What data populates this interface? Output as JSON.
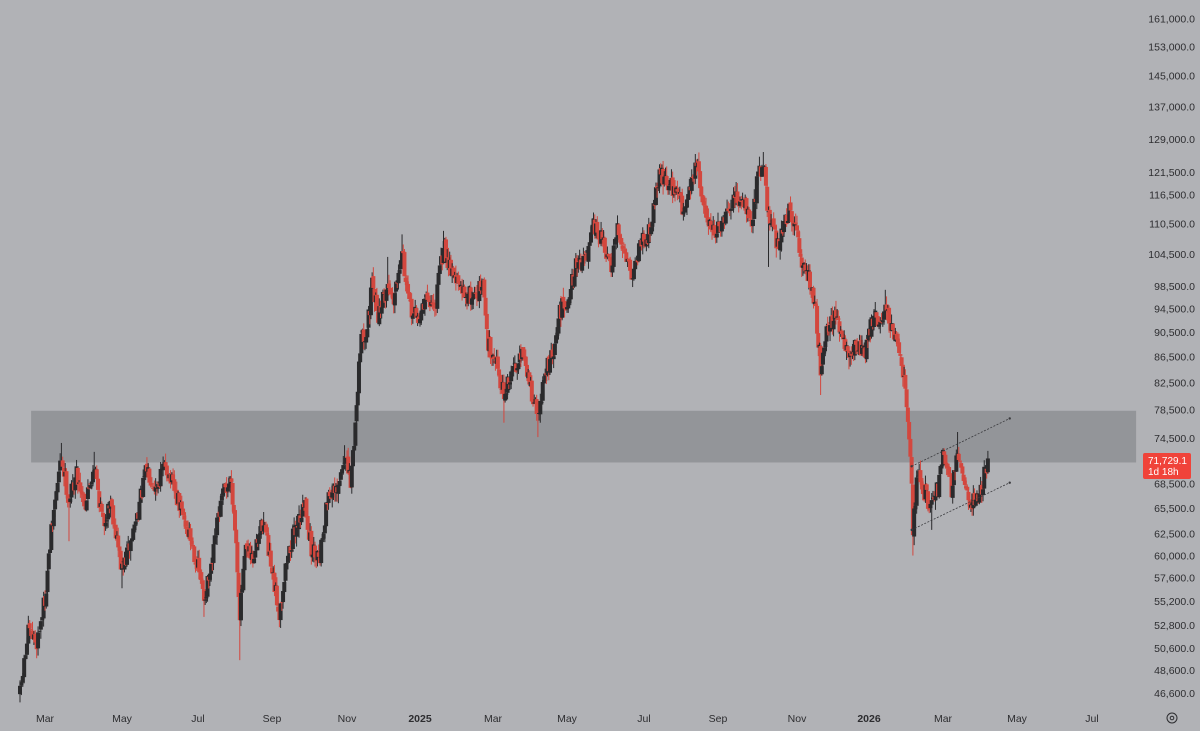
{
  "chart_data": {
    "type": "candlestick",
    "title": "",
    "xlabel": "",
    "ylabel": "",
    "scale": "log",
    "ylim": [
      45500,
      163000
    ],
    "colors": {
      "background": "#b1b2b6",
      "up": "#2a2a2c",
      "down": "#d3473e",
      "zone": "#8e8f94",
      "current_price_badge": "#f0433a",
      "axis_text": "#2d2d30"
    },
    "y_ticks": [
      {
        "label": "161,000.0",
        "value": 161000
      },
      {
        "label": "153,000.0",
        "value": 153000
      },
      {
        "label": "145,000.0",
        "value": 145000
      },
      {
        "label": "137,000.0",
        "value": 137000
      },
      {
        "label": "129,000.0",
        "value": 129000
      },
      {
        "label": "121,500.0",
        "value": 121500
      },
      {
        "label": "116,500.0",
        "value": 116500
      },
      {
        "label": "110,500.0",
        "value": 110500
      },
      {
        "label": "104,500.0",
        "value": 104500
      },
      {
        "label": "98,500.0",
        "value": 98500
      },
      {
        "label": "94,500.0",
        "value": 94500
      },
      {
        "label": "90,500.0",
        "value": 90500
      },
      {
        "label": "86,500.0",
        "value": 86500
      },
      {
        "label": "82,500.0",
        "value": 82500
      },
      {
        "label": "78,500.0",
        "value": 78500
      },
      {
        "label": "74,500.0",
        "value": 74500
      },
      {
        "label": "68,500.0",
        "value": 68500
      },
      {
        "label": "65,500.0",
        "value": 65500
      },
      {
        "label": "62,500.0",
        "value": 62500
      },
      {
        "label": "60,000.0",
        "value": 60000
      },
      {
        "label": "57,600.0",
        "value": 57600
      },
      {
        "label": "55,200.0",
        "value": 55200
      },
      {
        "label": "52,800.0",
        "value": 52800
      },
      {
        "label": "50,600.0",
        "value": 50600
      },
      {
        "label": "48,600.0",
        "value": 48600
      },
      {
        "label": "46,600.0",
        "value": 46600
      }
    ],
    "x_ticks": [
      {
        "label": "Mar",
        "date": "2024-03-01",
        "bold": false
      },
      {
        "label": "May",
        "date": "2024-05-01",
        "bold": false
      },
      {
        "label": "Jul",
        "date": "2024-07-01",
        "bold": false
      },
      {
        "label": "Sep",
        "date": "2024-09-01",
        "bold": false
      },
      {
        "label": "Nov",
        "date": "2024-11-01",
        "bold": false
      },
      {
        "label": "2025",
        "date": "2025-01-01",
        "bold": true
      },
      {
        "label": "Mar",
        "date": "2025-03-01",
        "bold": false
      },
      {
        "label": "May",
        "date": "2025-05-01",
        "bold": false
      },
      {
        "label": "Jul",
        "date": "2025-07-01",
        "bold": false
      },
      {
        "label": "Sep",
        "date": "2025-09-01",
        "bold": false
      },
      {
        "label": "Nov",
        "date": "2025-11-01",
        "bold": false
      },
      {
        "label": "2026",
        "date": "2026-01-01",
        "bold": true
      },
      {
        "label": "Mar",
        "date": "2026-03-01",
        "bold": false
      },
      {
        "label": "May",
        "date": "2026-05-01",
        "bold": false
      },
      {
        "label": "Jul",
        "date": "2026-07-01",
        "bold": false
      }
    ],
    "resistance_zone": {
      "low": 71200,
      "high": 78300,
      "start_date": "2024-02-20",
      "end_date": "2026-08-15"
    },
    "channel": {
      "upper": [
        {
          "date": "2026-02-04",
          "price": 70700
        },
        {
          "date": "2026-04-25",
          "price": 77200
        }
      ],
      "lower": [
        {
          "date": "2026-02-04",
          "price": 62900
        },
        {
          "date": "2026-04-25",
          "price": 68600
        }
      ]
    },
    "current_price": {
      "label": "71,729.1",
      "countdown": "1d 18h",
      "value": 71729.1
    },
    "price_path": [
      {
        "date": "2024-02-12",
        "price": 46500,
        "high": 47500,
        "low": 45800
      },
      {
        "date": "2024-02-18",
        "price": 52000
      },
      {
        "date": "2024-02-24",
        "price": 51200
      },
      {
        "date": "2024-03-01",
        "price": 55500
      },
      {
        "date": "2024-03-06",
        "price": 62500
      },
      {
        "date": "2024-03-10",
        "price": 67500
      },
      {
        "date": "2024-03-14",
        "price": 71800,
        "high": 73800
      },
      {
        "date": "2024-03-20",
        "price": 66500,
        "low": 61600
      },
      {
        "date": "2024-03-26",
        "price": 69800
      },
      {
        "date": "2024-04-02",
        "price": 66000
      },
      {
        "date": "2024-04-09",
        "price": 71000,
        "high": 72600
      },
      {
        "date": "2024-04-16",
        "price": 63500
      },
      {
        "date": "2024-04-22",
        "price": 66500
      },
      {
        "date": "2024-05-01",
        "price": 58300,
        "low": 56500
      },
      {
        "date": "2024-05-08",
        "price": 61500
      },
      {
        "date": "2024-05-15",
        "price": 66000
      },
      {
        "date": "2024-05-21",
        "price": 70500,
        "high": 71900
      },
      {
        "date": "2024-05-28",
        "price": 68000
      },
      {
        "date": "2024-06-05",
        "price": 71000,
        "high": 72000
      },
      {
        "date": "2024-06-12",
        "price": 67500
      },
      {
        "date": "2024-06-19",
        "price": 64500
      },
      {
        "date": "2024-06-26",
        "price": 61500
      },
      {
        "date": "2024-07-03",
        "price": 57500
      },
      {
        "date": "2024-07-06",
        "price": 55500,
        "low": 53600
      },
      {
        "date": "2024-07-12",
        "price": 58200
      },
      {
        "date": "2024-07-18",
        "price": 64500
      },
      {
        "date": "2024-07-23",
        "price": 67500
      },
      {
        "date": "2024-07-29",
        "price": 69000,
        "high": 70200
      },
      {
        "date": "2024-08-02",
        "price": 61500
      },
      {
        "date": "2024-08-05",
        "price": 54000,
        "low": 49500
      },
      {
        "date": "2024-08-10",
        "price": 60500
      },
      {
        "date": "2024-08-16",
        "price": 59500
      },
      {
        "date": "2024-08-25",
        "price": 64200,
        "high": 65000
      },
      {
        "date": "2024-08-31",
        "price": 58500
      },
      {
        "date": "2024-09-07",
        "price": 54000,
        "low": 52600
      },
      {
        "date": "2024-09-13",
        "price": 59500
      },
      {
        "date": "2024-09-21",
        "price": 63500
      },
      {
        "date": "2024-09-28",
        "price": 66000,
        "high": 66500
      },
      {
        "date": "2024-10-03",
        "price": 60500
      },
      {
        "date": "2024-10-10",
        "price": 60200,
        "low": 58900
      },
      {
        "date": "2024-10-17",
        "price": 67500
      },
      {
        "date": "2024-10-24",
        "price": 67000
      },
      {
        "date": "2024-10-30",
        "price": 72200,
        "high": 73500
      },
      {
        "date": "2024-11-04",
        "price": 68500
      },
      {
        "date": "2024-11-08",
        "price": 76500
      },
      {
        "date": "2024-11-12",
        "price": 88500
      },
      {
        "date": "2024-11-18",
        "price": 91500
      },
      {
        "date": "2024-11-22",
        "price": 98300,
        "high": 99600
      },
      {
        "date": "2024-11-27",
        "price": 93500
      },
      {
        "date": "2024-12-05",
        "price": 98500,
        "high": 103900
      },
      {
        "date": "2024-12-10",
        "price": 96500
      },
      {
        "date": "2024-12-17",
        "price": 106000,
        "high": 108300
      },
      {
        "date": "2024-12-22",
        "price": 95500
      },
      {
        "date": "2024-12-30",
        "price": 92500,
        "low": 91500
      },
      {
        "date": "2025-01-07",
        "price": 96500
      },
      {
        "date": "2025-01-13",
        "price": 94500
      },
      {
        "date": "2025-01-20",
        "price": 106000,
        "high": 109000
      },
      {
        "date": "2025-01-27",
        "price": 101500
      },
      {
        "date": "2025-02-03",
        "price": 97500
      },
      {
        "date": "2025-02-12",
        "price": 96500
      },
      {
        "date": "2025-02-21",
        "price": 98500
      },
      {
        "date": "2025-02-25",
        "price": 88500
      },
      {
        "date": "2025-03-03",
        "price": 86500
      },
      {
        "date": "2025-03-10",
        "price": 80500,
        "low": 76600
      },
      {
        "date": "2025-03-17",
        "price": 84000
      },
      {
        "date": "2025-03-24",
        "price": 87500,
        "high": 88500
      },
      {
        "date": "2025-03-31",
        "price": 82500
      },
      {
        "date": "2025-04-07",
        "price": 77500,
        "low": 74600
      },
      {
        "date": "2025-04-14",
        "price": 84500
      },
      {
        "date": "2025-04-21",
        "price": 87500
      },
      {
        "date": "2025-04-25",
        "price": 94000
      },
      {
        "date": "2025-05-02",
        "price": 96500
      },
      {
        "date": "2025-05-09",
        "price": 103000
      },
      {
        "date": "2025-05-17",
        "price": 103500
      },
      {
        "date": "2025-05-22",
        "price": 109500,
        "high": 111800
      },
      {
        "date": "2025-05-28",
        "price": 107500
      },
      {
        "date": "2025-06-05",
        "price": 101500
      },
      {
        "date": "2025-06-10",
        "price": 108800
      },
      {
        "date": "2025-06-17",
        "price": 104500
      },
      {
        "date": "2025-06-22",
        "price": 100500,
        "low": 98300
      },
      {
        "date": "2025-06-29",
        "price": 107500
      },
      {
        "date": "2025-07-05",
        "price": 108500
      },
      {
        "date": "2025-07-10",
        "price": 115500
      },
      {
        "date": "2025-07-14",
        "price": 121500,
        "high": 123200
      },
      {
        "date": "2025-07-22",
        "price": 118500
      },
      {
        "date": "2025-07-30",
        "price": 117500
      },
      {
        "date": "2025-08-02",
        "price": 113000
      },
      {
        "date": "2025-08-09",
        "price": 118500
      },
      {
        "date": "2025-08-14",
        "price": 123500,
        "high": 124300
      },
      {
        "date": "2025-08-20",
        "price": 113500
      },
      {
        "date": "2025-08-30",
        "price": 108500
      },
      {
        "date": "2025-09-06",
        "price": 110500
      },
      {
        "date": "2025-09-13",
        "price": 115500
      },
      {
        "date": "2025-09-21",
        "price": 115500
      },
      {
        "date": "2025-09-26",
        "price": 109500
      },
      {
        "date": "2025-10-02",
        "price": 120500
      },
      {
        "date": "2025-10-06",
        "price": 124500,
        "high": 126000
      },
      {
        "date": "2025-10-10",
        "price": 112000,
        "low": 102000
      },
      {
        "date": "2025-10-17",
        "price": 106500
      },
      {
        "date": "2025-10-27",
        "price": 114000
      },
      {
        "date": "2025-11-04",
        "price": 103500
      },
      {
        "date": "2025-11-13",
        "price": 99000
      },
      {
        "date": "2025-11-17",
        "price": 93500
      },
      {
        "date": "2025-11-21",
        "price": 85000,
        "low": 80600
      },
      {
        "date": "2025-11-26",
        "price": 91000
      },
      {
        "date": "2025-12-03",
        "price": 93000
      },
      {
        "date": "2025-12-08",
        "price": 90000
      },
      {
        "date": "2025-12-15",
        "price": 86500,
        "low": 84500
      },
      {
        "date": "2025-12-22",
        "price": 88500
      },
      {
        "date": "2025-12-29",
        "price": 87500
      },
      {
        "date": "2026-01-05",
        "price": 93500
      },
      {
        "date": "2026-01-10",
        "price": 91500
      },
      {
        "date": "2026-01-14",
        "price": 95500,
        "high": 97800
      },
      {
        "date": "2026-01-20",
        "price": 89500
      },
      {
        "date": "2026-01-26",
        "price": 87500
      },
      {
        "date": "2026-01-30",
        "price": 81500
      },
      {
        "date": "2026-02-03",
        "price": 72500
      },
      {
        "date": "2026-02-05",
        "price": 63000,
        "low": 60000
      },
      {
        "date": "2026-02-09",
        "price": 70500
      },
      {
        "date": "2026-02-14",
        "price": 67500
      },
      {
        "date": "2026-02-20",
        "price": 65500,
        "low": 62900
      },
      {
        "date": "2026-02-25",
        "price": 68000
      },
      {
        "date": "2026-03-02",
        "price": 72800
      },
      {
        "date": "2026-03-08",
        "price": 67500
      },
      {
        "date": "2026-03-13",
        "price": 73500,
        "high": 75300
      },
      {
        "date": "2026-03-19",
        "price": 68000
      },
      {
        "date": "2026-03-25",
        "price": 66000,
        "low": 64900
      },
      {
        "date": "2026-04-01",
        "price": 67500
      },
      {
        "date": "2026-04-07",
        "price": 71700,
        "high": 72500
      }
    ]
  }
}
